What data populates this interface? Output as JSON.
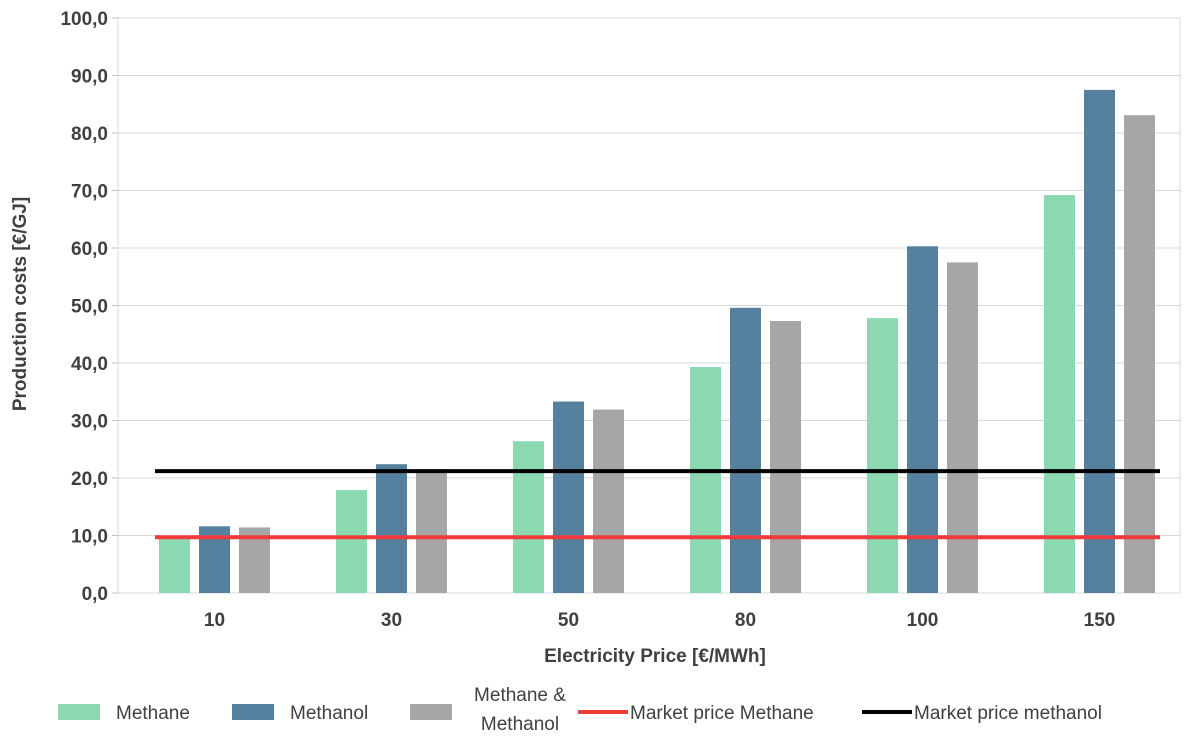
{
  "chart_data": {
    "type": "bar",
    "categories": [
      "10",
      "30",
      "50",
      "80",
      "100",
      "150"
    ],
    "series": [
      {
        "name": "Methane",
        "color": "#8ad9b0",
        "values": [
          9.5,
          17.9,
          26.4,
          39.3,
          47.8,
          69.2
        ]
      },
      {
        "name": "Methanol",
        "color": "#56819e",
        "values": [
          11.6,
          22.4,
          33.3,
          49.6,
          60.3,
          87.5
        ]
      },
      {
        "name": "Methane & Methanol",
        "color": "#a6a6a6",
        "values": [
          11.4,
          21.5,
          31.9,
          47.3,
          57.5,
          83.1
        ]
      }
    ],
    "reference_lines": [
      {
        "name": "Market price Methane",
        "color": "#ef3b3b",
        "value": 9.7
      },
      {
        "name": "Market price methanol",
        "color": "#000000",
        "value": 21.2
      }
    ],
    "y_ticks": [
      "0,0",
      "10,0",
      "20,0",
      "30,0",
      "40,0",
      "50,0",
      "60,0",
      "70,0",
      "80,0",
      "90,0",
      "100,0"
    ],
    "ylim": [
      0,
      100
    ],
    "xlabel": "Electricity Price [€/MWh]",
    "ylabel": "Production costs [€/GJ]",
    "legend": {
      "position": "bottom",
      "entries": [
        {
          "label_lines": [
            "Methane"
          ],
          "kind": "bar"
        },
        {
          "label_lines": [
            "Methanol"
          ],
          "kind": "bar"
        },
        {
          "label_lines": [
            "Methane &",
            "Methanol"
          ],
          "kind": "bar"
        },
        {
          "label_lines": [
            "Market price Methane"
          ],
          "kind": "line"
        },
        {
          "label_lines": [
            "Market price methanol"
          ],
          "kind": "line"
        }
      ]
    }
  }
}
